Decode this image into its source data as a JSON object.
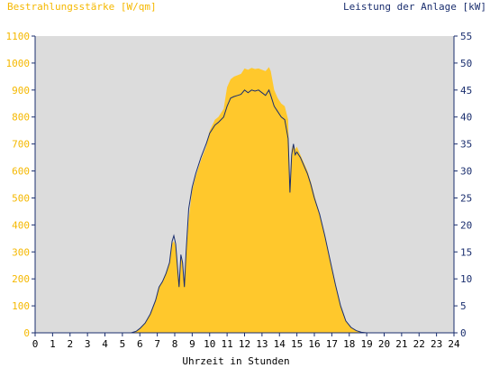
{
  "chart_data": {
    "type": "area",
    "title_left": "Bestrahlungsstärke [W/qm]",
    "title_right": "Leistung der Anlage [kW]",
    "xlabel": "Uhrzeit in Stunden",
    "xlim": [
      0,
      24
    ],
    "ylim_left": [
      0,
      1100
    ],
    "ylim_right": [
      0,
      55
    ],
    "x_ticks": [
      0,
      1,
      2,
      3,
      4,
      5,
      6,
      7,
      8,
      9,
      10,
      11,
      12,
      13,
      14,
      15,
      16,
      17,
      18,
      19,
      20,
      21,
      22,
      23,
      24
    ],
    "y_ticks_left": [
      0,
      100,
      200,
      300,
      400,
      500,
      600,
      700,
      800,
      900,
      1000,
      1100
    ],
    "y_ticks_right": [
      0,
      5,
      10,
      15,
      20,
      25,
      30,
      35,
      40,
      45,
      50,
      55
    ],
    "grid": false,
    "series": [
      {
        "axis": "left",
        "kind": "area",
        "color": "#ffc82c",
        "x": [
          0,
          5.5,
          5.8,
          6.0,
          6.3,
          6.6,
          6.9,
          7.1,
          7.3,
          7.5,
          7.7,
          7.85,
          7.95,
          8.05,
          8.15,
          8.25,
          8.35,
          8.45,
          8.55,
          8.65,
          8.8,
          9.0,
          9.2,
          9.5,
          9.8,
          10.0,
          10.3,
          10.5,
          10.8,
          11.0,
          11.2,
          11.4,
          11.6,
          11.8,
          12.0,
          12.2,
          12.4,
          12.6,
          12.8,
          13.0,
          13.2,
          13.4,
          13.5,
          13.7,
          13.9,
          14.1,
          14.3,
          14.5,
          14.6,
          14.7,
          14.8,
          14.9,
          15.0,
          15.2,
          15.4,
          15.6,
          15.8,
          16.0,
          16.3,
          16.6,
          16.9,
          17.2,
          17.5,
          17.8,
          18.1,
          18.4,
          18.7,
          19.0,
          19.3,
          24
        ],
        "y": [
          0,
          0,
          5,
          15,
          35,
          70,
          120,
          170,
          190,
          220,
          260,
          330,
          340,
          320,
          250,
          180,
          280,
          260,
          170,
          290,
          420,
          530,
          580,
          640,
          690,
          750,
          790,
          800,
          830,
          910,
          940,
          950,
          955,
          960,
          980,
          975,
          982,
          978,
          980,
          975,
          970,
          985,
          970,
          900,
          870,
          850,
          840,
          790,
          550,
          680,
          700,
          680,
          690,
          660,
          630,
          600,
          560,
          510,
          440,
          360,
          270,
          180,
          100,
          45,
          20,
          8,
          2,
          0,
          0,
          0
        ]
      },
      {
        "axis": "right",
        "kind": "line",
        "color": "#1a2e6e",
        "x": [
          0,
          5.5,
          5.8,
          6.0,
          6.3,
          6.6,
          6.9,
          7.1,
          7.3,
          7.5,
          7.7,
          7.85,
          7.95,
          8.05,
          8.15,
          8.25,
          8.35,
          8.45,
          8.55,
          8.65,
          8.8,
          9.0,
          9.2,
          9.5,
          9.8,
          10.0,
          10.3,
          10.5,
          10.8,
          11.0,
          11.2,
          11.4,
          11.6,
          11.8,
          12.0,
          12.2,
          12.4,
          12.6,
          12.8,
          13.0,
          13.2,
          13.4,
          13.5,
          13.7,
          13.9,
          14.1,
          14.3,
          14.5,
          14.6,
          14.7,
          14.8,
          14.9,
          15.0,
          15.2,
          15.4,
          15.6,
          15.8,
          16.0,
          16.3,
          16.6,
          16.9,
          17.2,
          17.5,
          17.8,
          18.1,
          18.4,
          18.7,
          19.0,
          19.3,
          24
        ],
        "y": [
          0,
          0,
          0.3,
          0.8,
          1.8,
          3.5,
          6.0,
          8.5,
          9.5,
          11.0,
          13.0,
          17.0,
          18.0,
          16.5,
          12.5,
          8.5,
          14.5,
          13.0,
          8.5,
          15.0,
          23.0,
          27.0,
          29.5,
          32.5,
          35.0,
          37.0,
          38.5,
          39.0,
          40.0,
          42.0,
          43.5,
          43.8,
          44.0,
          44.2,
          45.0,
          44.5,
          45.0,
          44.8,
          45.0,
          44.5,
          44.0,
          45.0,
          44.0,
          42.0,
          41.0,
          40.0,
          39.5,
          36.0,
          26.0,
          33.0,
          35.0,
          33.0,
          33.5,
          32.5,
          31.0,
          29.5,
          27.5,
          25.0,
          22.0,
          18.0,
          13.5,
          9.0,
          5.0,
          2.2,
          1.0,
          0.4,
          0.1,
          0,
          0,
          0
        ]
      }
    ]
  },
  "colors": {
    "plot_bg": "#dcdcdc",
    "axis": "#1a2e6e",
    "left_label": "#f5b800",
    "right_label": "#1a2e6e"
  }
}
